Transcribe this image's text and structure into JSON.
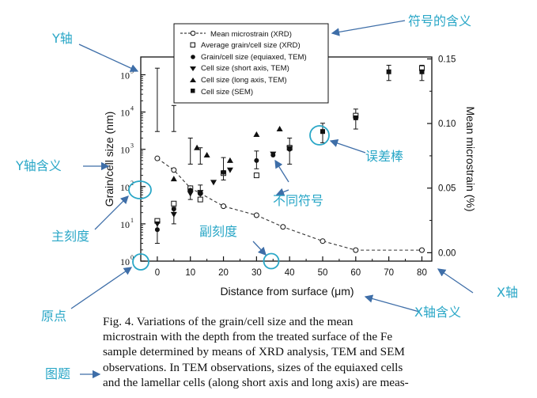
{
  "chart_data": {
    "type": "scatter",
    "title": "",
    "xlabel": "Distance from surface (μm)",
    "ylabel": "Grain/cell size (nm)",
    "y2label": "Mean microstrain (%)",
    "xlim": [
      -5,
      83
    ],
    "ylim": [
      1,
      300000
    ],
    "yscale": "log",
    "y2lim": [
      -0.0065,
      0.1515
    ],
    "xticks": [
      "0",
      "10",
      "20",
      "30",
      "40",
      "50",
      "60",
      "70",
      "80"
    ],
    "yticks": [
      "10",
      "10",
      "10",
      "10",
      "10",
      "10"
    ],
    "ytick_exponents": [
      "0",
      "1",
      "2",
      "3",
      "4",
      "5"
    ],
    "y2ticks": [
      "0.00",
      "0.05",
      "0.10",
      "0.15"
    ],
    "legend_position": "top-center",
    "series": [
      {
        "name": "Mean microstrain (XRD)",
        "marker": "open-circle",
        "axis": "right",
        "line": "dashed",
        "points": [
          [
            0,
            0.073
          ],
          [
            5,
            0.064
          ],
          [
            10,
            0.05
          ],
          [
            13,
            0.046
          ],
          [
            20,
            0.036
          ],
          [
            30,
            0.029
          ],
          [
            38,
            0.02
          ],
          [
            50,
            0.009
          ],
          [
            60,
            0.002
          ],
          [
            80,
            0.002
          ]
        ]
      },
      {
        "name": "Average grain/cell size (XRD)",
        "marker": "open-square",
        "axis": "left",
        "points": [
          [
            0,
            12
          ],
          [
            5,
            35
          ],
          [
            10,
            90
          ],
          [
            13,
            45
          ],
          [
            20,
            230
          ],
          [
            30,
            200
          ],
          [
            40,
            1100
          ],
          [
            60,
            8000
          ],
          [
            80,
            150000
          ]
        ]
      },
      {
        "name": "Grain/cell size (equiaxed, TEM)",
        "marker": "filled-circle",
        "axis": "left",
        "points": [
          [
            0,
            7
          ],
          [
            5,
            25
          ],
          [
            10,
            80
          ],
          [
            13,
            65
          ],
          [
            20,
            240
          ],
          [
            30,
            500
          ],
          [
            35,
            700
          ],
          [
            40,
            1000
          ]
        ]
      },
      {
        "name": "Cell size (short axis, TEM)",
        "marker": "filled-triangle-down",
        "axis": "left",
        "points": [
          [
            0,
            10
          ],
          [
            5,
            18
          ],
          [
            10,
            65
          ],
          [
            13,
            70
          ],
          [
            17,
            130
          ],
          [
            22,
            280
          ],
          [
            35,
            750
          ],
          [
            40,
            1050
          ]
        ]
      },
      {
        "name": "Cell size (long axis, TEM)",
        "marker": "filled-triangle-up",
        "axis": "left",
        "points": [
          [
            5,
            160
          ],
          [
            12,
            1100
          ],
          [
            15,
            700
          ],
          [
            22,
            500
          ],
          [
            30,
            2500
          ],
          [
            37,
            3500
          ]
        ]
      },
      {
        "name": "Cell size (SEM)",
        "marker": "filled-square",
        "axis": "left",
        "points": [
          [
            50,
            3000
          ],
          [
            60,
            7000
          ],
          [
            70,
            120000
          ],
          [
            80,
            120000
          ]
        ]
      }
    ],
    "error_bars": [
      {
        "x": 0,
        "y": 25000,
        "low": 3000,
        "high": 150000
      },
      {
        "x": 5,
        "y": 7000,
        "low": 3000,
        "high": 15000
      },
      {
        "x": 10,
        "y": 1000,
        "low": 400,
        "high": 2000
      },
      {
        "x": 13,
        "y": 700,
        "low": 400,
        "high": 1100
      },
      {
        "x": 20,
        "y": 300,
        "low": 150,
        "high": 600
      },
      {
        "x": 30,
        "y": 550,
        "low": 300,
        "high": 900
      },
      {
        "x": 40,
        "y": 1000,
        "low": 400,
        "high": 2000
      },
      {
        "x": 50,
        "y": 3000,
        "low": 1500,
        "high": 5000
      },
      {
        "x": 60,
        "y": 7000,
        "low": 3500,
        "high": 12000
      },
      {
        "x": 70,
        "y": 120000,
        "low": 70000,
        "high": 180000
      },
      {
        "x": 80,
        "y": 120000,
        "low": 70000,
        "high": 180000
      },
      {
        "x": 0,
        "y": 7,
        "low": 3,
        "high": 12
      },
      {
        "x": 5,
        "y": 18,
        "low": 10,
        "high": 28
      },
      {
        "x": 10,
        "y": 70,
        "low": 45,
        "high": 100
      },
      {
        "x": 13,
        "y": 65,
        "low": 40,
        "high": 110
      }
    ]
  },
  "annotations": [
    {
      "text": "符号的含义",
      "color": "#2aa7c7"
    },
    {
      "text": "Y轴",
      "color": "#2aa7c7"
    },
    {
      "text": "Y轴含义",
      "color": "#2aa7c7"
    },
    {
      "text": "主刻度",
      "color": "#2aa7c7"
    },
    {
      "text": "原点",
      "color": "#2aa7c7"
    },
    {
      "text": "图题",
      "color": "#2aa7c7"
    },
    {
      "text": "误差棒",
      "color": "#2aa7c7"
    },
    {
      "text": "不同符号",
      "color": "#2aa7c7"
    },
    {
      "text": "副刻度",
      "color": "#2aa7c7"
    },
    {
      "text": "X轴",
      "color": "#2aa7c7"
    },
    {
      "text": "X轴含义",
      "color": "#2aa7c7"
    }
  ],
  "caption": {
    "lines": [
      "Fig. 4.  Variations of the grain/cell size and the mean",
      "microstrain with the depth from the treated surface of the Fe",
      "sample determined by means of XRD analysis, TEM and SEM",
      "observations. In TEM observations, sizes of the equiaxed cells",
      "and the lamellar cells (along short axis and long axis) are meas-"
    ]
  },
  "colors": {
    "annotation": "#2aa7c7",
    "arrow": "#3e6ea8",
    "ink": "#111111"
  }
}
